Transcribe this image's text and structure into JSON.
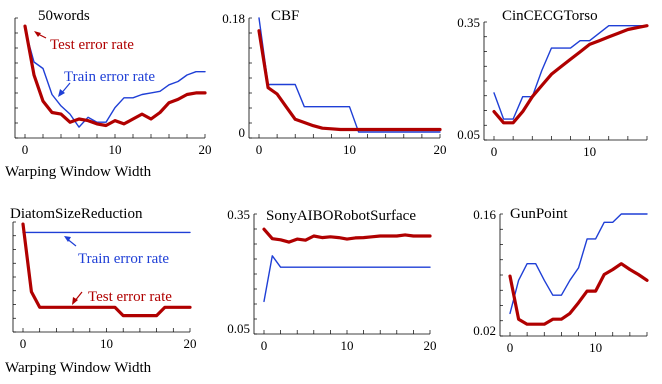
{
  "figure": {
    "x_axis_label": "Warping Window Width"
  },
  "colors": {
    "train": "#1f3fd6",
    "test": "#b00000",
    "axis": "#000000"
  },
  "chart_data": [
    {
      "type": "line",
      "title": "50words",
      "xlabel": "Warping Window Width",
      "ylabel": "",
      "xlim": [
        0,
        20
      ],
      "ylim": [
        0.25,
        0.95
      ],
      "xticks": [
        0,
        10,
        20
      ],
      "yticks": [],
      "annotations": [
        {
          "text": "Test error rate",
          "series": "test"
        },
        {
          "text": "Train error rate",
          "series": "train"
        }
      ],
      "series": [
        {
          "key": "train",
          "name": "Train error rate",
          "x": [
            0,
            1,
            2,
            3,
            4,
            5,
            6,
            7,
            8,
            9,
            10,
            11,
            12,
            13,
            14,
            15,
            16,
            17,
            18,
            19,
            20
          ],
          "y": [
            0.88,
            0.68,
            0.64,
            0.48,
            0.41,
            0.36,
            0.28,
            0.34,
            0.31,
            0.31,
            0.4,
            0.46,
            0.46,
            0.48,
            0.49,
            0.5,
            0.54,
            0.56,
            0.6,
            0.62,
            0.62
          ]
        },
        {
          "key": "test",
          "name": "Test error rate",
          "x": [
            0,
            1,
            2,
            3,
            4,
            5,
            6,
            7,
            8,
            9,
            10,
            11,
            12,
            13,
            14,
            15,
            16,
            17,
            18,
            19,
            20
          ],
          "y": [
            0.9,
            0.6,
            0.44,
            0.37,
            0.36,
            0.31,
            0.33,
            0.32,
            0.3,
            0.29,
            0.32,
            0.3,
            0.33,
            0.36,
            0.33,
            0.37,
            0.43,
            0.45,
            0.48,
            0.49,
            0.49
          ]
        }
      ]
    },
    {
      "type": "line",
      "title": "CBF",
      "xlabel": "",
      "ylabel": "",
      "xlim": [
        0,
        20
      ],
      "ylim": [
        0,
        0.18
      ],
      "xticks": [
        0,
        10,
        20
      ],
      "yticks": [
        0,
        0.18
      ],
      "ytick_labels": [
        "0",
        "0.18"
      ],
      "series": [
        {
          "key": "train",
          "x": [
            0,
            1,
            2,
            3,
            4,
            5,
            6,
            7,
            8,
            9,
            10,
            11,
            12,
            13,
            14,
            15,
            16,
            17,
            18,
            19,
            20
          ],
          "y": [
            0.185,
            0.075,
            0.075,
            0.075,
            0.075,
            0.04,
            0.04,
            0.04,
            0.04,
            0.04,
            0.04,
            0.0,
            0.0,
            0.0,
            0.0,
            0.0,
            0.0,
            0.0,
            0.0,
            0.0,
            0.0
          ]
        },
        {
          "key": "test",
          "x": [
            0,
            1,
            2,
            3,
            4,
            5,
            6,
            7,
            8,
            9,
            10,
            11,
            12,
            13,
            14,
            15,
            16,
            17,
            18,
            19,
            20
          ],
          "y": [
            0.16,
            0.07,
            0.06,
            0.04,
            0.02,
            0.015,
            0.01,
            0.006,
            0.005,
            0.004,
            0.004,
            0.004,
            0.004,
            0.004,
            0.004,
            0.004,
            0.004,
            0.004,
            0.004,
            0.004,
            0.004
          ]
        }
      ]
    },
    {
      "type": "line",
      "title": "CinCECGTorso",
      "xlabel": "",
      "ylabel": "",
      "xlim": [
        0,
        16
      ],
      "ylim": [
        0.05,
        0.35
      ],
      "xticks": [
        0,
        10
      ],
      "yticks": [
        0.05,
        0.35
      ],
      "ytick_labels": [
        "0.05",
        "0.35"
      ],
      "series": [
        {
          "key": "train",
          "x": [
            0,
            1,
            2,
            3,
            4,
            5,
            6,
            7,
            8,
            9,
            10,
            11,
            12,
            13,
            14,
            15,
            16
          ],
          "y": [
            0.16,
            0.09,
            0.09,
            0.15,
            0.15,
            0.22,
            0.28,
            0.28,
            0.28,
            0.3,
            0.3,
            0.32,
            0.34,
            0.34,
            0.34,
            0.34,
            0.34
          ]
        },
        {
          "key": "test",
          "x": [
            0,
            1,
            2,
            3,
            4,
            5,
            6,
            7,
            8,
            9,
            10,
            11,
            12,
            13,
            14,
            15,
            16
          ],
          "y": [
            0.11,
            0.08,
            0.08,
            0.11,
            0.15,
            0.18,
            0.21,
            0.23,
            0.25,
            0.27,
            0.29,
            0.3,
            0.31,
            0.32,
            0.33,
            0.335,
            0.34
          ]
        }
      ]
    },
    {
      "type": "line",
      "title": "DiatomSizeReduction",
      "xlabel": "Warping Window Width",
      "ylabel": "",
      "xlim": [
        0,
        20
      ],
      "ylim": [
        0,
        1
      ],
      "xticks": [
        0,
        10,
        20
      ],
      "yticks": [],
      "annotations": [
        {
          "text": "Train error rate",
          "series": "train"
        },
        {
          "text": "Test error rate",
          "series": "test"
        }
      ],
      "series": [
        {
          "key": "train",
          "x": [
            0,
            20
          ],
          "y": [
            0.9,
            0.9
          ]
        },
        {
          "key": "test",
          "x": [
            0,
            1,
            2,
            3,
            4,
            5,
            6,
            7,
            8,
            9,
            10,
            11,
            12,
            13,
            14,
            15,
            16,
            17,
            18,
            19,
            20
          ],
          "y": [
            0.98,
            0.33,
            0.18,
            0.18,
            0.18,
            0.18,
            0.18,
            0.18,
            0.18,
            0.18,
            0.18,
            0.18,
            0.1,
            0.1,
            0.1,
            0.1,
            0.1,
            0.18,
            0.18,
            0.18,
            0.18
          ]
        }
      ]
    },
    {
      "type": "line",
      "title": "SonyAIBORobotSurface",
      "xlabel": "",
      "ylabel": "",
      "xlim": [
        0,
        20
      ],
      "ylim": [
        0.05,
        0.35
      ],
      "xticks": [
        0,
        10,
        20
      ],
      "yticks": [
        0.05,
        0.35
      ],
      "ytick_labels": [
        "0.05",
        "0.35"
      ],
      "series": [
        {
          "key": "train",
          "x": [
            0,
            1,
            2,
            3,
            4,
            5,
            6,
            7,
            8,
            9,
            10,
            11,
            12,
            13,
            14,
            15,
            16,
            17,
            18,
            19,
            20
          ],
          "y": [
            0.12,
            0.24,
            0.21,
            0.21,
            0.21,
            0.21,
            0.21,
            0.21,
            0.21,
            0.21,
            0.21,
            0.21,
            0.21,
            0.21,
            0.21,
            0.21,
            0.21,
            0.21,
            0.21,
            0.21,
            0.21
          ]
        },
        {
          "key": "test",
          "x": [
            0,
            1,
            2,
            3,
            4,
            5,
            6,
            7,
            8,
            9,
            10,
            11,
            12,
            13,
            14,
            15,
            16,
            17,
            18,
            19,
            20
          ],
          "y": [
            0.31,
            0.285,
            0.282,
            0.276,
            0.284,
            0.281,
            0.292,
            0.288,
            0.29,
            0.288,
            0.284,
            0.287,
            0.288,
            0.29,
            0.292,
            0.292,
            0.292,
            0.295,
            0.292,
            0.292,
            0.292
          ]
        }
      ]
    },
    {
      "type": "line",
      "title": "GunPoint",
      "xlabel": "",
      "ylabel": "",
      "xlim": [
        0,
        16
      ],
      "ylim": [
        0.02,
        0.16
      ],
      "xticks": [
        0,
        10
      ],
      "yticks": [
        0.02,
        0.16
      ],
      "ytick_labels": [
        "0.02",
        "0.16"
      ],
      "series": [
        {
          "key": "train",
          "x": [
            0,
            1,
            2,
            3,
            4,
            5,
            6,
            7,
            8,
            9,
            10,
            11,
            12,
            13,
            14,
            15,
            16
          ],
          "y": [
            0.04,
            0.08,
            0.1,
            0.1,
            0.08,
            0.062,
            0.062,
            0.08,
            0.095,
            0.13,
            0.13,
            0.15,
            0.15,
            0.165,
            0.165,
            0.165,
            0.165
          ]
        },
        {
          "key": "test",
          "x": [
            0,
            1,
            2,
            3,
            4,
            5,
            6,
            7,
            8,
            9,
            10,
            11,
            12,
            13,
            14,
            15,
            16
          ],
          "y": [
            0.085,
            0.033,
            0.027,
            0.027,
            0.027,
            0.033,
            0.033,
            0.04,
            0.053,
            0.067,
            0.067,
            0.087,
            0.093,
            0.1,
            0.093,
            0.087,
            0.08
          ]
        }
      ]
    }
  ]
}
